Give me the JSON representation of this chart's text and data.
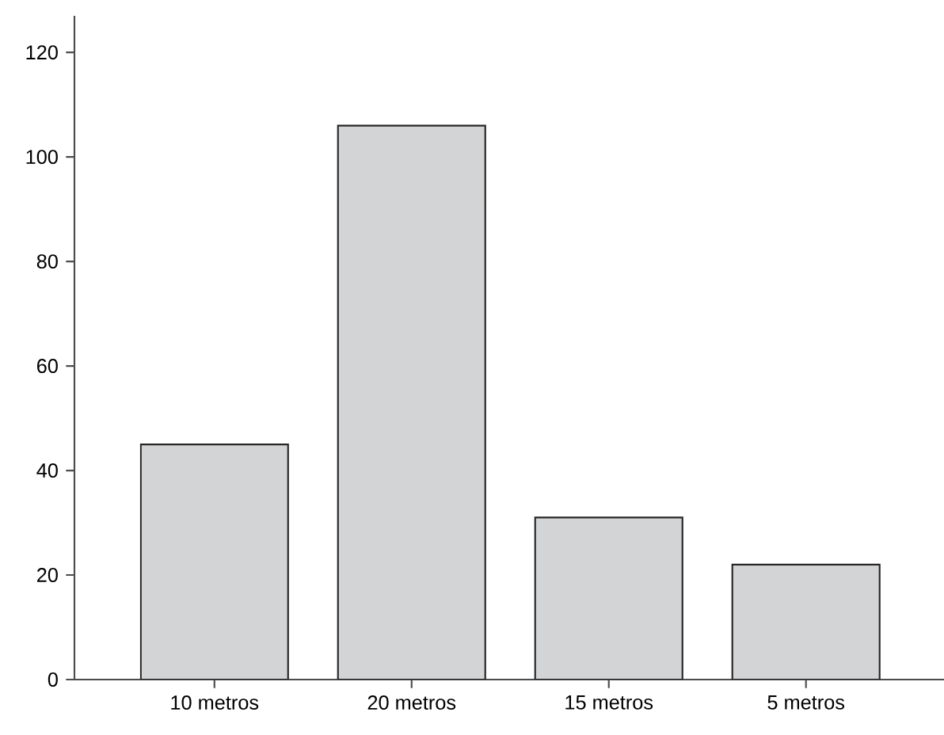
{
  "chart_data": {
    "type": "bar",
    "categories": [
      "10 metros",
      "20 metros",
      "15 metros",
      "5 metros"
    ],
    "values": [
      45,
      106,
      31,
      22
    ],
    "color": "#d3d4d6",
    "ylim": [
      0,
      127
    ],
    "yticks": [
      0,
      20,
      40,
      60,
      80,
      100,
      120
    ],
    "grid": false
  }
}
